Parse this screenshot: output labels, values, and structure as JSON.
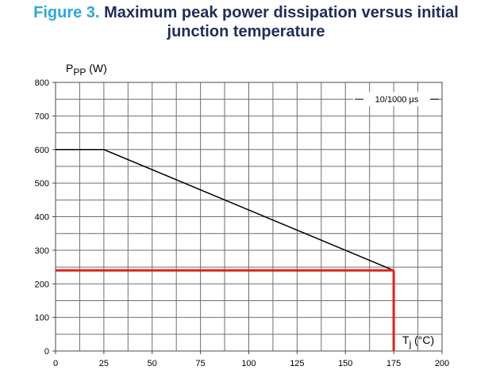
{
  "figure": {
    "label": "Figure 3.",
    "title_line1": "Maximum peak power dissipation versus initial",
    "title_line2": "junction temperature"
  },
  "chart_data": {
    "type": "line",
    "ylabel_main": "P",
    "ylabel_sub": "PP",
    "ylabel_unit": " (W)",
    "xlabel_main": "T",
    "xlabel_sub": "j",
    "xlabel_unit": " (°C)",
    "xlim": [
      0,
      200
    ],
    "ylim": [
      0,
      800
    ],
    "x_ticks": [
      0,
      25,
      50,
      75,
      100,
      125,
      150,
      175,
      200
    ],
    "y_ticks": [
      0,
      100,
      200,
      300,
      400,
      500,
      600,
      700,
      800
    ],
    "grid": true,
    "legend": {
      "label": "10/1000 µs",
      "placement": "top-right"
    },
    "series": [
      {
        "name": "10/1000 µs",
        "color": "#000000",
        "x": [
          0,
          25,
          175
        ],
        "y": [
          600,
          600,
          240
        ]
      }
    ],
    "markers": {
      "color": "#e0201b",
      "horizontal": {
        "y": 240,
        "x_from": 0,
        "x_to": 175
      },
      "vertical": {
        "x": 175,
        "y_from": 0,
        "y_to": 240
      }
    }
  }
}
